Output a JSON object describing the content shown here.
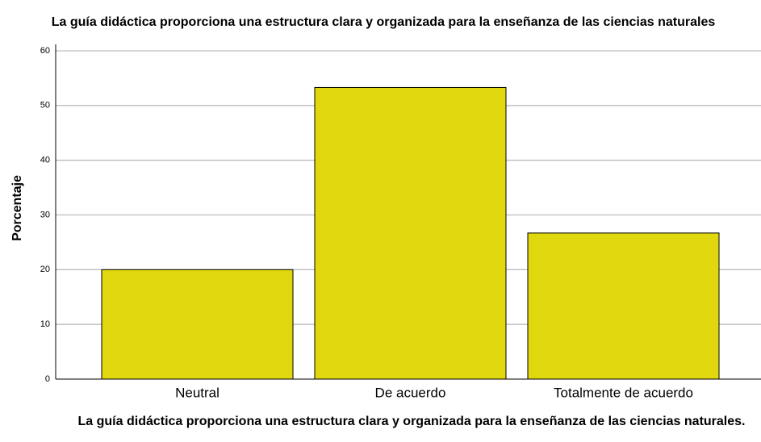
{
  "chart_data": {
    "type": "bar",
    "title": "La guía didáctica proporciona una estructura clara y organizada para la enseñanza de las ciencias naturales",
    "x_label": "La guía didáctica proporciona una estructura clara y organizada para la enseñanza de las ciencias naturales.",
    "y_label": "Porcentaje",
    "categories": [
      "Neutral",
      "De acuerdo",
      "Totalmente de acuerdo"
    ],
    "values": [
      20,
      53.3,
      26.7
    ],
    "color": "#e1d70e",
    "ylim": [
      0,
      60
    ],
    "yticks": [
      0,
      10,
      20,
      30,
      40,
      50,
      60
    ],
    "grid": true
  }
}
